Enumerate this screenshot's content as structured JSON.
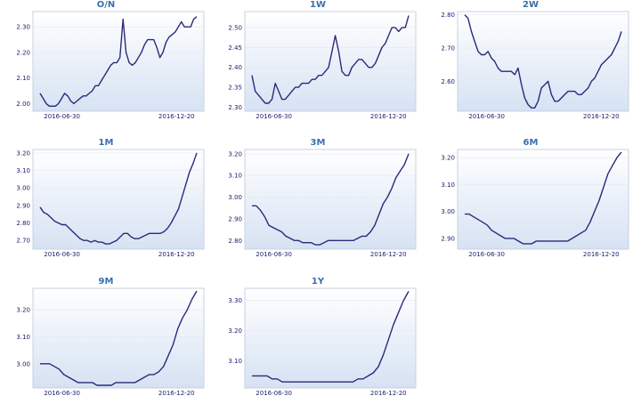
{
  "chart_data": [
    {
      "type": "line",
      "title": "O/N",
      "yticks": [
        "2.00",
        "2.10",
        "2.20",
        "2.30"
      ],
      "ylim": [
        1.97,
        2.36
      ],
      "xticks": [
        "2016-06-30",
        "2016-12-20"
      ],
      "values": [
        2.04,
        2.02,
        2.0,
        1.99,
        1.99,
        1.99,
        2.0,
        2.02,
        2.04,
        2.03,
        2.01,
        2.0,
        2.01,
        2.02,
        2.03,
        2.03,
        2.04,
        2.05,
        2.07,
        2.07,
        2.09,
        2.11,
        2.13,
        2.15,
        2.16,
        2.16,
        2.18,
        2.33,
        2.2,
        2.16,
        2.15,
        2.16,
        2.18,
        2.2,
        2.23,
        2.25,
        2.25,
        2.25,
        2.22,
        2.18,
        2.2,
        2.24,
        2.26,
        2.27,
        2.28,
        2.3,
        2.32,
        2.3,
        2.3,
        2.3,
        2.33,
        2.34
      ]
    },
    {
      "type": "line",
      "title": "1W",
      "yticks": [
        "2.30",
        "2.35",
        "2.40",
        "2.45",
        "2.50"
      ],
      "ylim": [
        2.29,
        2.54
      ],
      "xticks": [
        "2016-06-30",
        "2016-12-20"
      ],
      "values": [
        2.38,
        2.34,
        2.33,
        2.32,
        2.31,
        2.31,
        2.32,
        2.36,
        2.34,
        2.32,
        2.32,
        2.33,
        2.34,
        2.35,
        2.35,
        2.36,
        2.36,
        2.36,
        2.37,
        2.37,
        2.38,
        2.38,
        2.39,
        2.4,
        2.44,
        2.48,
        2.44,
        2.39,
        2.38,
        2.38,
        2.4,
        2.41,
        2.42,
        2.42,
        2.41,
        2.4,
        2.4,
        2.41,
        2.43,
        2.45,
        2.46,
        2.48,
        2.5,
        2.5,
        2.49,
        2.5,
        2.5,
        2.53
      ]
    },
    {
      "type": "line",
      "title": "2W",
      "yticks": [
        "2.60",
        "2.70",
        "2.80"
      ],
      "ylim": [
        2.51,
        2.81
      ],
      "xticks": [
        "2016-06-30",
        "2016-12-20"
      ],
      "values": [
        2.8,
        2.79,
        2.75,
        2.72,
        2.69,
        2.68,
        2.68,
        2.69,
        2.67,
        2.66,
        2.64,
        2.63,
        2.63,
        2.63,
        2.63,
        2.62,
        2.64,
        2.59,
        2.55,
        2.53,
        2.52,
        2.52,
        2.54,
        2.58,
        2.59,
        2.6,
        2.56,
        2.54,
        2.54,
        2.55,
        2.56,
        2.57,
        2.57,
        2.57,
        2.56,
        2.56,
        2.57,
        2.58,
        2.6,
        2.61,
        2.63,
        2.65,
        2.66,
        2.67,
        2.68,
        2.7,
        2.72,
        2.75
      ]
    },
    {
      "type": "line",
      "title": "1M",
      "yticks": [
        "2.70",
        "2.80",
        "2.90",
        "3.00",
        "3.10",
        "3.20"
      ],
      "ylim": [
        2.65,
        3.22
      ],
      "xticks": [
        "2016-06-30",
        "2016-12-20"
      ],
      "values": [
        2.89,
        2.86,
        2.85,
        2.83,
        2.81,
        2.8,
        2.79,
        2.79,
        2.77,
        2.75,
        2.73,
        2.71,
        2.7,
        2.7,
        2.69,
        2.7,
        2.69,
        2.69,
        2.68,
        2.68,
        2.69,
        2.7,
        2.72,
        2.74,
        2.74,
        2.72,
        2.71,
        2.71,
        2.72,
        2.73,
        2.74,
        2.74,
        2.74,
        2.74,
        2.75,
        2.77,
        2.8,
        2.84,
        2.88,
        2.95,
        3.02,
        3.09,
        3.14,
        3.2
      ]
    },
    {
      "type": "line",
      "title": "3M",
      "yticks": [
        "2.80",
        "2.90",
        "3.00",
        "3.10",
        "3.20"
      ],
      "ylim": [
        2.76,
        3.22
      ],
      "xticks": [
        "2016-06-30",
        "2016-12-20"
      ],
      "values": [
        2.96,
        2.96,
        2.94,
        2.91,
        2.87,
        2.86,
        2.85,
        2.84,
        2.82,
        2.81,
        2.8,
        2.8,
        2.79,
        2.79,
        2.79,
        2.78,
        2.78,
        2.79,
        2.8,
        2.8,
        2.8,
        2.8,
        2.8,
        2.8,
        2.8,
        2.81,
        2.82,
        2.82,
        2.84,
        2.87,
        2.92,
        2.97,
        3.0,
        3.04,
        3.09,
        3.12,
        3.15,
        3.2
      ]
    },
    {
      "type": "line",
      "title": "6M",
      "yticks": [
        "2.90",
        "3.00",
        "3.10",
        "3.20"
      ],
      "ylim": [
        2.86,
        3.23
      ],
      "xticks": [
        "2016-06-30",
        "2016-12-20"
      ],
      "values": [
        2.99,
        2.99,
        2.98,
        2.97,
        2.96,
        2.95,
        2.93,
        2.92,
        2.91,
        2.9,
        2.9,
        2.9,
        2.89,
        2.88,
        2.88,
        2.88,
        2.89,
        2.89,
        2.89,
        2.89,
        2.89,
        2.89,
        2.89,
        2.89,
        2.9,
        2.91,
        2.92,
        2.93,
        2.96,
        3.0,
        3.04,
        3.09,
        3.14,
        3.17,
        3.2,
        3.22
      ]
    },
    {
      "type": "line",
      "title": "9M",
      "yticks": [
        "3.00",
        "3.10",
        "3.20"
      ],
      "ylim": [
        2.91,
        3.28
      ],
      "xticks": [
        "2016-06-30",
        "2016-12-20"
      ],
      "values": [
        3.0,
        3.0,
        3.0,
        2.99,
        2.98,
        2.96,
        2.95,
        2.94,
        2.93,
        2.93,
        2.93,
        2.93,
        2.92,
        2.92,
        2.92,
        2.92,
        2.93,
        2.93,
        2.93,
        2.93,
        2.93,
        2.94,
        2.95,
        2.96,
        2.96,
        2.97,
        2.99,
        3.03,
        3.07,
        3.13,
        3.17,
        3.2,
        3.24,
        3.27
      ]
    },
    {
      "type": "line",
      "title": "1Y",
      "yticks": [
        "3.10",
        "3.20",
        "3.30"
      ],
      "ylim": [
        3.01,
        3.34
      ],
      "xticks": [
        "2016-06-30",
        "2016-12-20"
      ],
      "values": [
        3.05,
        3.05,
        3.05,
        3.05,
        3.04,
        3.04,
        3.03,
        3.03,
        3.03,
        3.03,
        3.03,
        3.03,
        3.03,
        3.03,
        3.03,
        3.03,
        3.03,
        3.03,
        3.03,
        3.03,
        3.03,
        3.04,
        3.04,
        3.05,
        3.06,
        3.08,
        3.12,
        3.17,
        3.22,
        3.26,
        3.3,
        3.33
      ]
    }
  ]
}
